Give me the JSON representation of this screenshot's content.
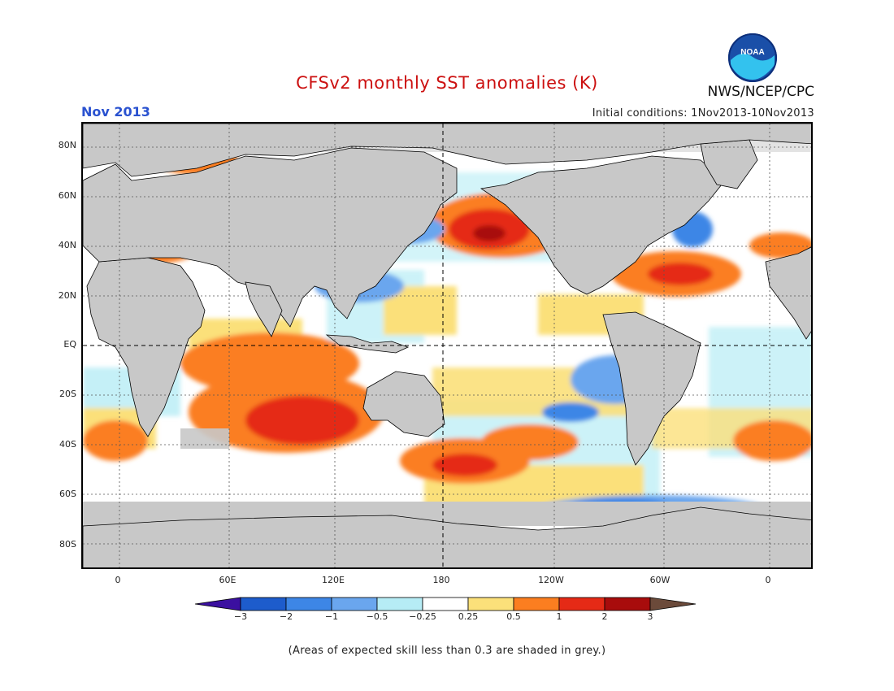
{
  "header": {
    "title": "CFSv2 monthly SST anomalies (K)",
    "organization": "NWS/NCEP/CPC",
    "month": "Nov 2013",
    "initial_conditions": "Initial conditions: 1Nov2013-10Nov2013"
  },
  "logo": {
    "text": "NOAA",
    "icon": "noaa-logo"
  },
  "map": {
    "projection": "equirectangular",
    "lon_range": [
      -20,
      380
    ],
    "lat_range": [
      -90,
      90
    ],
    "lat_labels": [
      "80N",
      "60N",
      "40N",
      "20N",
      "EQ",
      "20S",
      "40S",
      "60S",
      "80S"
    ],
    "lon_labels": [
      "0",
      "60E",
      "120E",
      "180",
      "120W",
      "60W",
      "0"
    ],
    "land_color": "#c8c8c8",
    "low_skill_color": "#c8c8c8"
  },
  "colorbar": {
    "ticks": [
      "-3",
      "-2",
      "-1",
      "-0.5",
      "-0.25",
      "0.25",
      "0.5",
      "1",
      "2",
      "3"
    ],
    "colors": [
      "#3b10a0",
      "#1d5ccc",
      "#3d86e6",
      "#6aa6ee",
      "#b6ecf5",
      "#ffffff",
      "#fbe07a",
      "#fb7e20",
      "#e52a16",
      "#a80c0c",
      "#6b4a3a"
    ]
  },
  "footnote": "(Areas of expected skill less than 0.3 are shaded in grey.)"
}
